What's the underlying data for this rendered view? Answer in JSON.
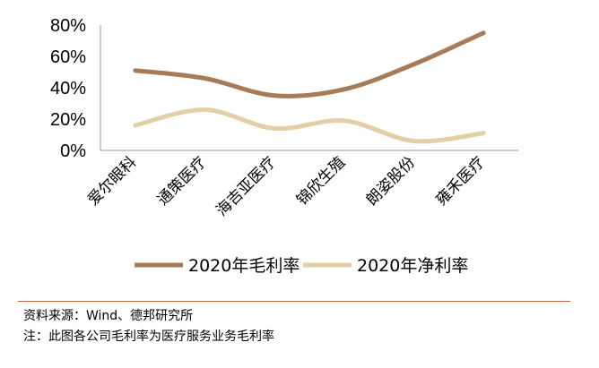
{
  "chart_data": {
    "type": "line",
    "categories": [
      "爱尔眼科",
      "通策医疗",
      "海吉亚医疗",
      "锦欣生殖",
      "朗姿股份",
      "雍禾医疗"
    ],
    "series": [
      {
        "name": "2020年毛利率",
        "values": [
          51,
          46,
          35,
          39,
          55,
          75
        ],
        "color": "#a87b58"
      },
      {
        "name": "2020年净利率",
        "values": [
          16,
          26,
          14,
          19,
          6,
          11
        ],
        "color": "#e2cfa6"
      }
    ],
    "yticks": [
      "80%",
      "60%",
      "40%",
      "20%",
      "0%"
    ],
    "ylim": [
      0,
      80
    ],
    "grid": false,
    "legend": "bottom",
    "smooth": true
  },
  "footer": {
    "source": "资料来源：Wind、德邦研究所",
    "note": "注：此图各公司毛利率为医疗服务业务毛利率"
  }
}
